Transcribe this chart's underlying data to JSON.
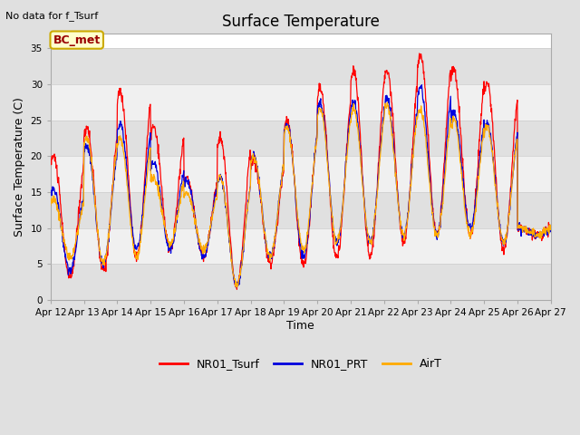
{
  "title": "Surface Temperature",
  "ylabel": "Surface Temperature (C)",
  "xlabel": "Time",
  "no_data_text": "No data for f_Tsurf",
  "bc_met_label": "BC_met",
  "legend_entries": [
    "NR01_Tsurf",
    "NR01_PRT",
    "AirT"
  ],
  "legend_colors": [
    "#ff0000",
    "#0000dd",
    "#ffaa00"
  ],
  "ylim": [
    0,
    37
  ],
  "yticks": [
    0,
    5,
    10,
    15,
    20,
    25,
    30,
    35
  ],
  "background_color": "#e0e0e0",
  "plot_bg_color": "#ffffff",
  "band_color_dark": "#e0e0e0",
  "band_color_light": "#f0f0f0",
  "xticklabels": [
    "Apr 12",
    "Apr 13",
    "Apr 14",
    "Apr 15",
    "Apr 16",
    "Apr 17",
    "Apr 18",
    "Apr 19",
    "Apr 20",
    "Apr 21",
    "Apr 22",
    "Apr 23",
    "Apr 24",
    "Apr 25",
    "Apr 26",
    "Apr 27"
  ],
  "n_days": 15,
  "pts_per_day": 96,
  "day_peaks_r": [
    20,
    24,
    29,
    24,
    17,
    22.5,
    19.5,
    25,
    29.5,
    32,
    32,
    34,
    32,
    30,
    10
  ],
  "day_lows_r": [
    3,
    4,
    6,
    7,
    6,
    2,
    5,
    5,
    6,
    6,
    8,
    9,
    9,
    7,
    9
  ],
  "day_peaks_b": [
    15.5,
    21.5,
    24.5,
    19,
    16.5,
    17,
    20,
    24.5,
    27.5,
    27.5,
    28,
    29.5,
    26,
    24.5,
    10
  ],
  "day_lows_b": [
    4,
    5,
    7,
    7,
    6,
    2,
    6,
    6,
    8,
    8,
    9,
    9,
    10,
    8,
    9
  ],
  "day_peaks_o": [
    14,
    22.5,
    22.5,
    17,
    15,
    17,
    20,
    24,
    26.5,
    26.5,
    27,
    26.5,
    25,
    24,
    10
  ],
  "day_lows_o": [
    6,
    5,
    6,
    8,
    7,
    2,
    6,
    7,
    8,
    8,
    9,
    9,
    9,
    8,
    9
  ]
}
